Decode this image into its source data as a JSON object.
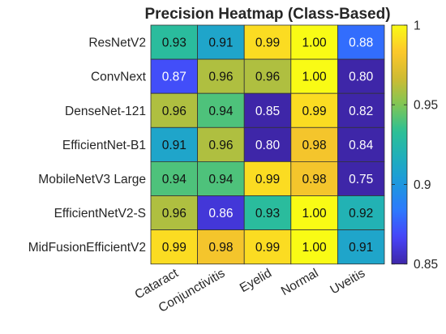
{
  "chart_data": {
    "type": "heatmap",
    "title": "Precision Heatmap (Class-Based)",
    "rows": [
      "ResNetV2",
      "ConvNext",
      "DenseNet-121",
      "EfficientNet-B1",
      "MobileNetV3 Large",
      "EfficientNetV2-S",
      "MidFusionEfficientV2"
    ],
    "columns": [
      "Cataract",
      "Conjunctivitis",
      "Eyelid",
      "Normal",
      "Uveitis"
    ],
    "values": [
      [
        0.93,
        0.91,
        0.99,
        1.0,
        0.88
      ],
      [
        0.87,
        0.96,
        0.96,
        1.0,
        0.8
      ],
      [
        0.96,
        0.94,
        0.85,
        0.99,
        0.82
      ],
      [
        0.91,
        0.96,
        0.8,
        0.98,
        0.84
      ],
      [
        0.94,
        0.94,
        0.99,
        0.98,
        0.75
      ],
      [
        0.96,
        0.86,
        0.93,
        1.0,
        0.92
      ],
      [
        0.99,
        0.98,
        0.99,
        1.0,
        0.91
      ]
    ],
    "value_labels": [
      [
        "0.93",
        "0.91",
        "0.99",
        "1.00",
        "0.88"
      ],
      [
        "0.87",
        "0.96",
        "0.96",
        "1.00",
        "0.80"
      ],
      [
        "0.96",
        "0.94",
        "0.85",
        "0.99",
        "0.82"
      ],
      [
        "0.91",
        "0.96",
        "0.80",
        "0.98",
        "0.84"
      ],
      [
        "0.94",
        "0.94",
        "0.99",
        "0.98",
        "0.75"
      ],
      [
        "0.96",
        "0.86",
        "0.93",
        "1.00",
        "0.92"
      ],
      [
        "0.99",
        "0.98",
        "0.99",
        "1.00",
        "0.91"
      ]
    ],
    "color_limits": [
      0.85,
      1.0
    ],
    "colorbar_ticks": [
      0.85,
      0.9,
      0.95,
      1.0
    ],
    "colorbar_tick_labels": [
      "0.85",
      "0.9",
      "0.95",
      "1"
    ],
    "colormap": "parula",
    "colormap_stops": [
      "#3e26a8",
      "#4743f8",
      "#2d78fe",
      "#1e97df",
      "#1faebc",
      "#2dc095",
      "#7fc655",
      "#cfbb32",
      "#fdc72b",
      "#f9fb15"
    ]
  }
}
